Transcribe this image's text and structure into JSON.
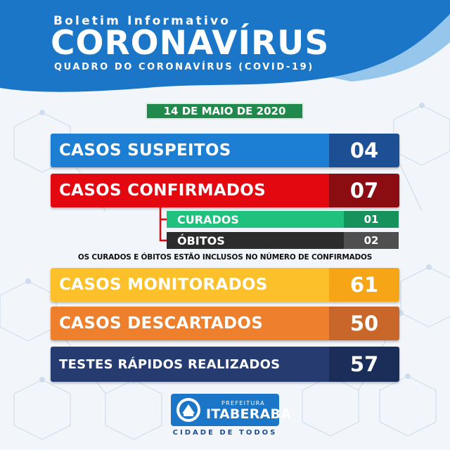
{
  "header": {
    "pretitle": "Boletim Informativo",
    "title": "CORONAVÍRUS",
    "subtitle": "QUADRO DO CORONAVÍRUS (COVID-19)"
  },
  "date": "14 DE MAIO DE 2020",
  "stats": {
    "suspeitos": {
      "label": "CASOS SUSPEITOS",
      "value": "04"
    },
    "confirmados": {
      "label": "CASOS CONFIRMADOS",
      "value": "07"
    },
    "curados": {
      "label": "CURADOS",
      "value": "01"
    },
    "obitos": {
      "label": "ÓBITOS",
      "value": "02"
    },
    "note": "OS CURADOS E ÓBITOS ESTÃO INCLUSOS NO NÚMERO DE CONFIRMADOS",
    "monitorados": {
      "label": "CASOS MONITORADOS",
      "value": "61"
    },
    "descartados": {
      "label": "CASOS DESCARTADOS",
      "value": "50"
    },
    "testes": {
      "label": "TESTES RÁPIDOS REALIZADOS",
      "value": "57"
    }
  },
  "logo": {
    "prefix": "PREFEITURA",
    "name": "ITABERABA",
    "tagline": "CIDADE DE TODOS"
  },
  "colors": {
    "header_blue": "#1c76c8",
    "suspeitos": "#1c7fd3",
    "confirmados": "#e3080f",
    "curados": "#1fc17c",
    "obitos": "#2c2c2c",
    "monitorados": "#fbc02a",
    "descartados": "#ee7f2c",
    "testes": "#263c70",
    "date_badge": "#1f8a4c"
  }
}
